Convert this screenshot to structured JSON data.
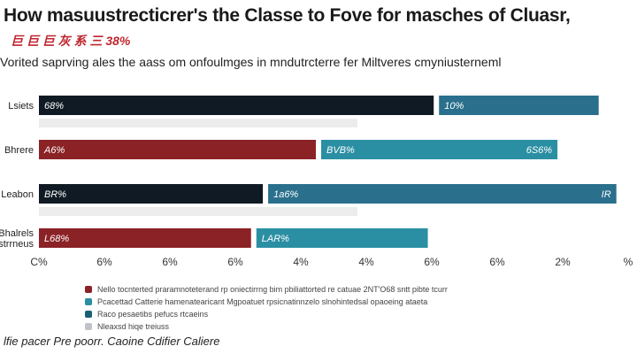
{
  "header": {
    "title": "How masuustrecticrer's the Classe to Fove for masches of Cluasr,",
    "subtitle_red": "巨 巨 巨 灰 系 三 38%",
    "subtitle": "Vorited saprving ales the aass om onfoulmges in mndutrcterre fer Miltveres cmyniusterneml"
  },
  "chart_data": {
    "type": "bar",
    "orientation": "horizontal",
    "stacked": true,
    "title": "",
    "xlabel": "",
    "ylabel": "",
    "xlim": [
      0,
      10
    ],
    "categories": [
      "Lsiets",
      "Bhrere",
      "Leabon",
      "Bhalrels strrneus"
    ],
    "series": [
      {
        "name": "",
        "color": "#0f1a24",
        "values": [
          6.7,
          null,
          3.8,
          null
        ]
      },
      {
        "name": "",
        "color": "#2a6f8c",
        "values": [
          2.8,
          null,
          6.0,
          null
        ]
      },
      {
        "name": "",
        "color": "#8b2226",
        "values": [
          null,
          4.7,
          null,
          3.6
        ]
      },
      {
        "name": "",
        "color": "#2b8fa3",
        "values": [
          null,
          4.1,
          null,
          3.0
        ]
      }
    ],
    "bar_labels": [
      [
        "68%",
        "10%"
      ],
      [
        "A6%",
        "BVB%"
      ],
      [
        "BR%",
        "1a6%"
      ],
      [
        "L68%",
        "LAR%"
      ]
    ],
    "bar_label_end": [
      "",
      "6S6%",
      "IR",
      ""
    ],
    "x_ticks": [
      "C%",
      "6%",
      "6%",
      "6%",
      "4%",
      "4%",
      "6%",
      "6%",
      "2%",
      "%"
    ],
    "grid": false
  },
  "legend": [
    {
      "color": "#8b2226",
      "text": "Nello tocnterted praramnoteterand rp oniectirrng bim pbiliattorted re catuae 2NT'O68 sntt pibte tcurr"
    },
    {
      "color": "#2b8fa3",
      "text": "Pcacettad Catterie hamenatearicant Mgpoatuet rpsicnatinnzelo slnohintedsal opaoeing ataeta"
    },
    {
      "color": "#1b5f73",
      "text": "Raco pesaetibs pefucs rtcaeins"
    },
    {
      "color": "#c0c4c8",
      "text": "Nleaxsd hiqe treiuss"
    }
  ],
  "footer": {
    "text": "lfie pacer Pre poorr. Caoine Cdifier Caliere"
  }
}
